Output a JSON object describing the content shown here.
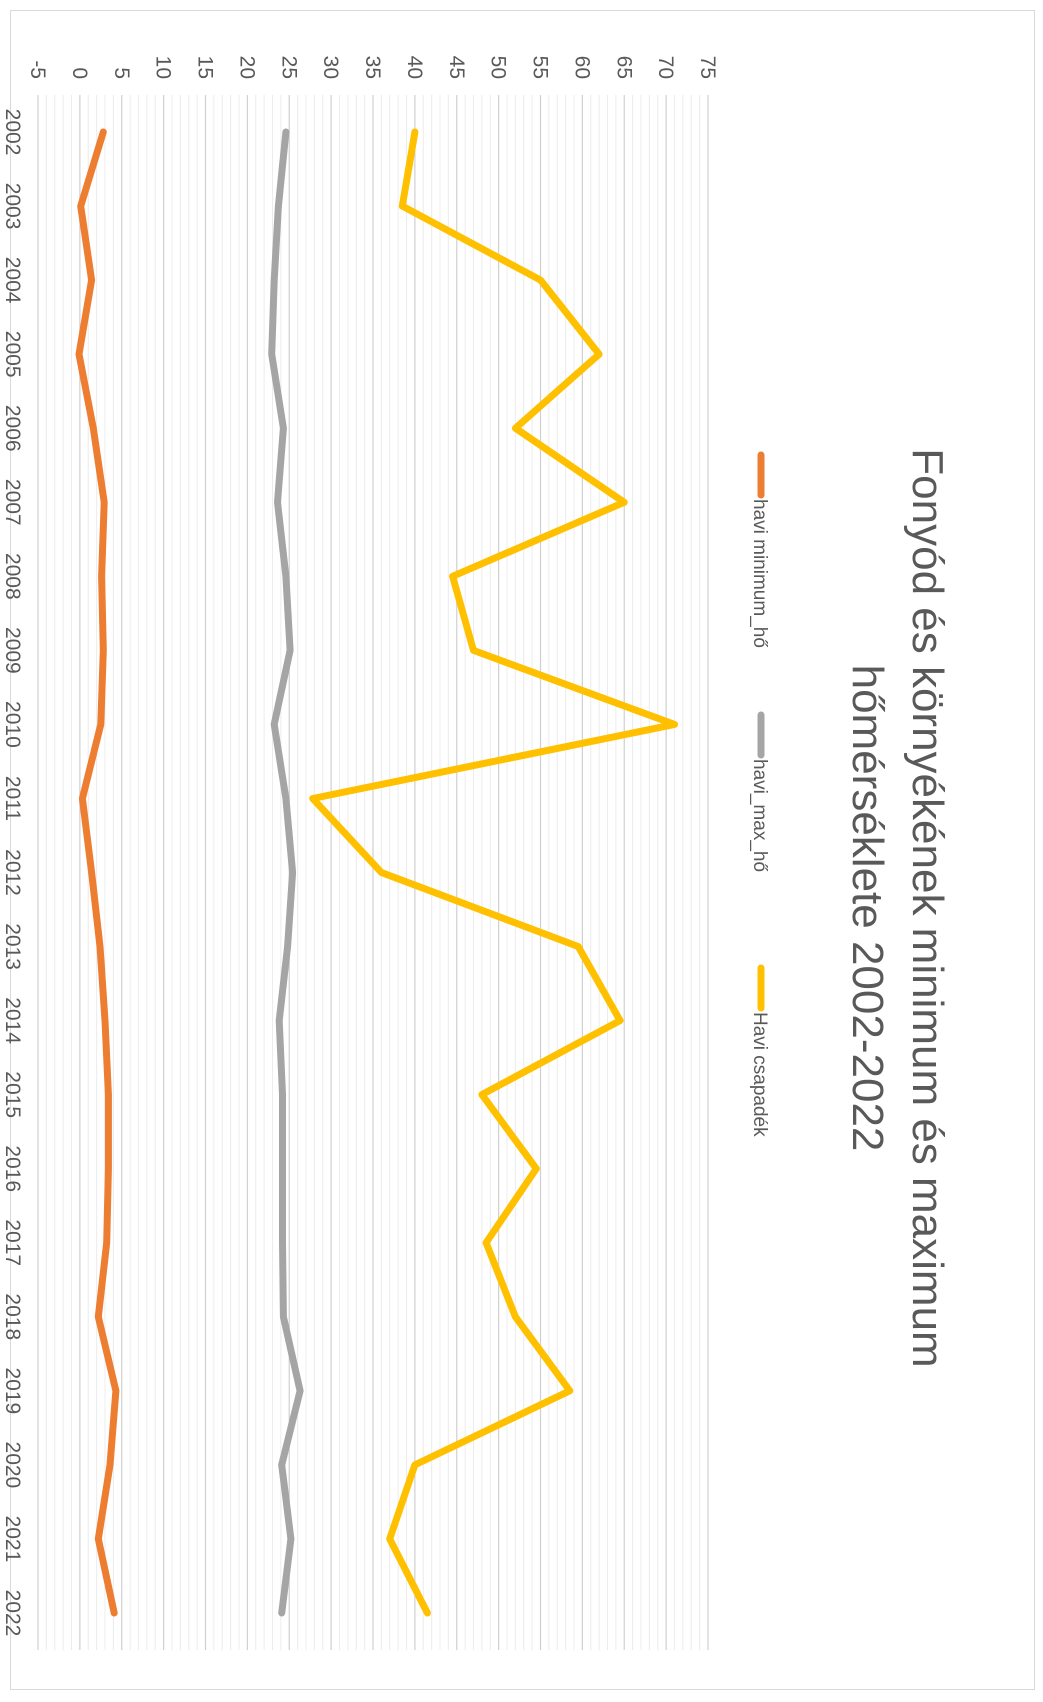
{
  "chart_data": {
    "type": "line",
    "title_lines": [
      "Fonyód és környékének minimum és maximum",
      "hőmérséklete 2002-2022"
    ],
    "categories": [
      "2002",
      "2003",
      "2004",
      "2005",
      "2006",
      "2007",
      "2008",
      "2009",
      "2010",
      "2011",
      "2012",
      "2013",
      "2014",
      "2015",
      "2016",
      "2017",
      "2018",
      "2019",
      "2020",
      "2021",
      "2022"
    ],
    "ylim": [
      -5,
      75
    ],
    "y_ticks": [
      "-5",
      "0",
      "5",
      "10",
      "15",
      "20",
      "25",
      "30",
      "35",
      "40",
      "45",
      "50",
      "55",
      "60",
      "65",
      "70",
      "75"
    ],
    "grid": true,
    "legend_position": "top",
    "orientation": "rotated-90-clockwise",
    "series": [
      {
        "name": "havi minimum_hő",
        "color": "#ED7D31",
        "values": [
          2.8,
          0.1,
          1.4,
          -0.1,
          1.6,
          2.9,
          2.6,
          2.8,
          2.5,
          0.3,
          1.4,
          2.4,
          3.0,
          3.4,
          3.4,
          3.2,
          2.2,
          4.3,
          3.6,
          2.2,
          4.1
        ]
      },
      {
        "name": "havi_max_hő",
        "color": "#A5A5A5",
        "values": [
          24.6,
          23.7,
          23.2,
          22.9,
          24.3,
          23.6,
          24.6,
          25.1,
          23.2,
          24.6,
          25.4,
          24.8,
          23.8,
          24.2,
          24.2,
          24.2,
          24.3,
          26.3,
          24.1,
          25.2,
          24.1
        ]
      },
      {
        "name": "Havi csapadék",
        "color": "#FFC000",
        "values": [
          40.0,
          38.5,
          55.0,
          62.0,
          52.0,
          65.0,
          44.5,
          47.0,
          71.0,
          27.8,
          36.0,
          59.5,
          64.5,
          48.0,
          54.5,
          48.5,
          52.0,
          58.5,
          40.0,
          37.0,
          41.5
        ]
      }
    ]
  }
}
